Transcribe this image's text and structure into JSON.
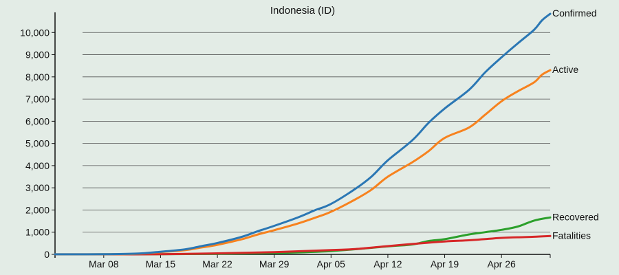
{
  "chart_data": {
    "type": "line",
    "title": "Indonesia (ID)",
    "xlabel": "",
    "ylabel": "",
    "x_range": [
      "2020-03-02",
      "2020-05-02"
    ],
    "ylim": [
      0,
      11000
    ],
    "y_ticks": [
      0,
      1000,
      2000,
      3000,
      4000,
      5000,
      6000,
      7000,
      8000,
      9000,
      10000
    ],
    "y_tick_labels": [
      "0",
      "1,000",
      "2,000",
      "3,000",
      "4,000",
      "5,000",
      "6,000",
      "7,000",
      "8,000",
      "9,000",
      "10,000"
    ],
    "x_ticks": [
      "2020-03-08",
      "2020-03-15",
      "2020-03-22",
      "2020-03-29",
      "2020-04-05",
      "2020-04-12",
      "2020-04-19",
      "2020-04-26"
    ],
    "x_tick_labels": [
      "Mar 08",
      "Mar 15",
      "Mar 22",
      "Mar 29",
      "Apr 05",
      "Apr 12",
      "Apr 19",
      "Apr 26"
    ],
    "grid": "horizontal",
    "legend": "inline-right",
    "series": [
      {
        "name": "Confirmed",
        "color": "#2b77b4",
        "points": [
          [
            "2020-03-02",
            2
          ],
          [
            "2020-03-08",
            6
          ],
          [
            "2020-03-12",
            34
          ],
          [
            "2020-03-15",
            117
          ],
          [
            "2020-03-18",
            227
          ],
          [
            "2020-03-20",
            369
          ],
          [
            "2020-03-22",
            514
          ],
          [
            "2020-03-25",
            790
          ],
          [
            "2020-03-27",
            1046
          ],
          [
            "2020-03-29",
            1285
          ],
          [
            "2020-04-01",
            1677
          ],
          [
            "2020-04-03",
            1986
          ],
          [
            "2020-04-05",
            2273
          ],
          [
            "2020-04-08",
            2956
          ],
          [
            "2020-04-10",
            3512
          ],
          [
            "2020-04-12",
            4241
          ],
          [
            "2020-04-15",
            5136
          ],
          [
            "2020-04-17",
            5923
          ],
          [
            "2020-04-19",
            6575
          ],
          [
            "2020-04-22",
            7418
          ],
          [
            "2020-04-24",
            8211
          ],
          [
            "2020-04-26",
            8882
          ],
          [
            "2020-04-28",
            9511
          ],
          [
            "2020-04-30",
            10118
          ],
          [
            "2020-05-01",
            10551
          ],
          [
            "2020-05-02",
            10843
          ]
        ]
      },
      {
        "name": "Active",
        "color": "#f7821e",
        "points": [
          [
            "2020-03-02",
            2
          ],
          [
            "2020-03-08",
            4
          ],
          [
            "2020-03-12",
            25
          ],
          [
            "2020-03-15",
            102
          ],
          [
            "2020-03-18",
            190
          ],
          [
            "2020-03-20",
            310
          ],
          [
            "2020-03-22",
            430
          ],
          [
            "2020-03-25",
            680
          ],
          [
            "2020-03-27",
            900
          ],
          [
            "2020-03-29",
            1090
          ],
          [
            "2020-04-01",
            1400
          ],
          [
            "2020-04-03",
            1650
          ],
          [
            "2020-04-05",
            1920
          ],
          [
            "2020-04-08",
            2480
          ],
          [
            "2020-04-10",
            2920
          ],
          [
            "2020-04-12",
            3500
          ],
          [
            "2020-04-15",
            4150
          ],
          [
            "2020-04-17",
            4650
          ],
          [
            "2020-04-19",
            5250
          ],
          [
            "2020-04-22",
            5720
          ],
          [
            "2020-04-24",
            6300
          ],
          [
            "2020-04-26",
            6900
          ],
          [
            "2020-04-28",
            7350
          ],
          [
            "2020-04-30",
            7750
          ],
          [
            "2020-05-01",
            8100
          ],
          [
            "2020-05-02",
            8300
          ]
        ]
      },
      {
        "name": "Recovered",
        "color": "#2ca02c",
        "points": [
          [
            "2020-03-02",
            0
          ],
          [
            "2020-03-15",
            8
          ],
          [
            "2020-03-22",
            29
          ],
          [
            "2020-03-29",
            64
          ],
          [
            "2020-04-05",
            150
          ],
          [
            "2020-04-12",
            359
          ],
          [
            "2020-04-15",
            446
          ],
          [
            "2020-04-17",
            600
          ],
          [
            "2020-04-19",
            686
          ],
          [
            "2020-04-22",
            900
          ],
          [
            "2020-04-24",
            1000
          ],
          [
            "2020-04-26",
            1107
          ],
          [
            "2020-04-28",
            1254
          ],
          [
            "2020-04-30",
            1522
          ],
          [
            "2020-05-02",
            1665
          ]
        ]
      },
      {
        "name": "Fatalities",
        "color": "#d62728",
        "points": [
          [
            "2020-03-02",
            0
          ],
          [
            "2020-03-12",
            1
          ],
          [
            "2020-03-15",
            5
          ],
          [
            "2020-03-22",
            48
          ],
          [
            "2020-03-29",
            102
          ],
          [
            "2020-04-05",
            191
          ],
          [
            "2020-04-08",
            240
          ],
          [
            "2020-04-12",
            373
          ],
          [
            "2020-04-15",
            469
          ],
          [
            "2020-04-19",
            582
          ],
          [
            "2020-04-22",
            635
          ],
          [
            "2020-04-24",
            689
          ],
          [
            "2020-04-26",
            743
          ],
          [
            "2020-04-28",
            773
          ],
          [
            "2020-04-30",
            792
          ],
          [
            "2020-05-02",
            827
          ]
        ]
      }
    ]
  }
}
